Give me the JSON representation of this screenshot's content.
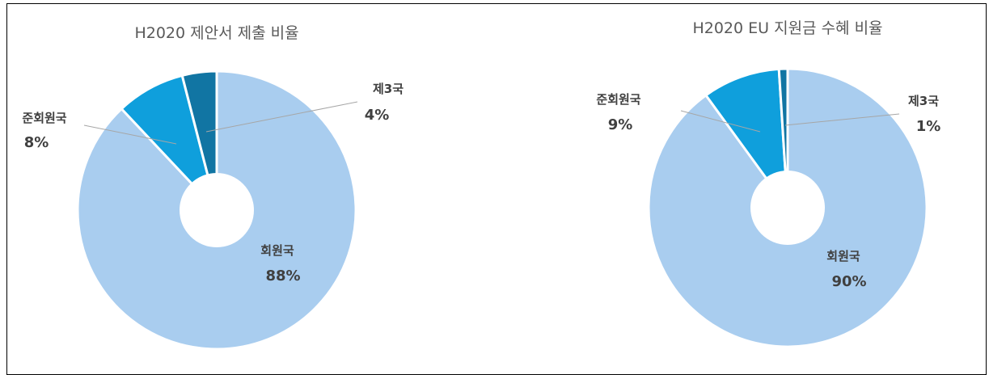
{
  "chart_data": [
    {
      "type": "pie",
      "title": "H2020 제안서 제출 비율",
      "colors": {
        "회원국": "#a9cdef",
        "준회원국": "#0f9fdc",
        "제3국": "#1175a3"
      },
      "slices": [
        {
          "label": "회원국",
          "value": 88,
          "value_label": "88%"
        },
        {
          "label": "준회원국",
          "value": 8,
          "value_label": "8%"
        },
        {
          "label": "제3국",
          "value": 4,
          "value_label": "4%"
        }
      ]
    },
    {
      "type": "pie",
      "title": "H2020 EU 지원금 수혜 비율",
      "colors": {
        "회원국": "#a9cdef",
        "준회원국": "#0f9fdc",
        "제3국": "#1175a3"
      },
      "slices": [
        {
          "label": "회원국",
          "value": 90,
          "value_label": "90%"
        },
        {
          "label": "준회원국",
          "value": 9,
          "value_label": "9%"
        },
        {
          "label": "제3국",
          "value": 1,
          "value_label": "1%"
        }
      ]
    }
  ]
}
